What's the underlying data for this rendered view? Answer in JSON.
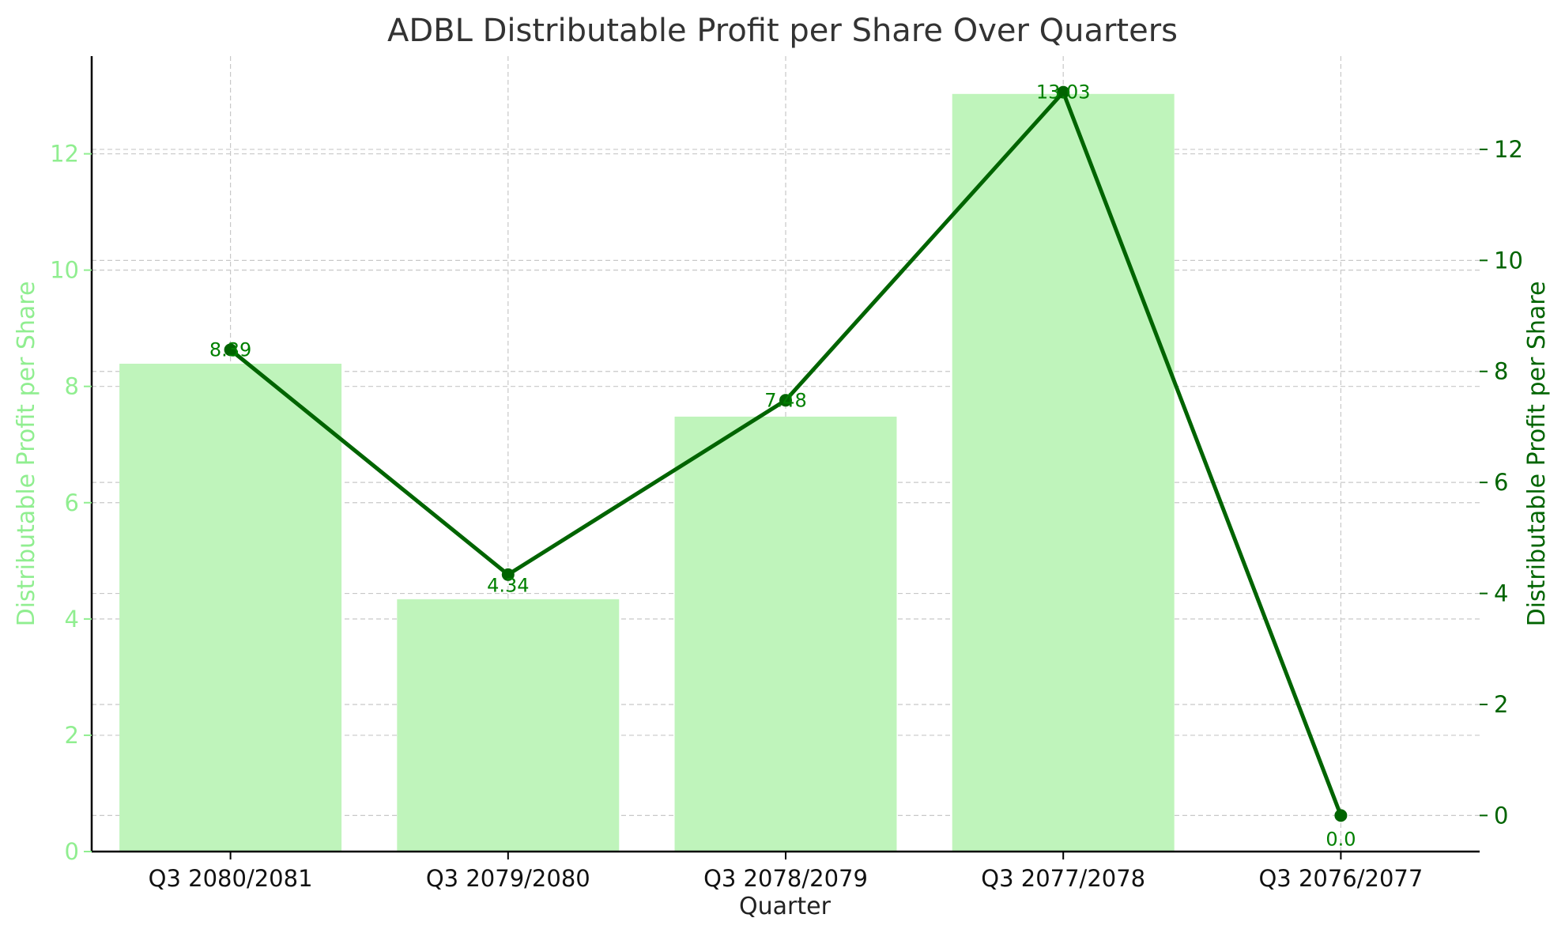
{
  "chart_data": {
    "type": "bar",
    "title": "ADBL Distributable Profit per Share Over Quarters",
    "xlabel": "Quarter",
    "ylabel_left": "Distributable Profit per Share",
    "ylabel_right": "Distributable Profit per Share",
    "categories": [
      "Q3 2080/2081",
      "Q3 2079/2080",
      "Q3 2078/2079",
      "Q3 2077/2078",
      "Q3 2076/2077"
    ],
    "series": [
      {
        "kind": "bar",
        "axis": "left",
        "values": [
          8.39,
          4.34,
          7.48,
          13.03,
          0.0
        ]
      },
      {
        "kind": "line",
        "axis": "right",
        "values": [
          8.39,
          4.34,
          7.48,
          13.03,
          0.0
        ]
      }
    ],
    "data_labels": [
      "8.39",
      "4.34",
      "7.48",
      "13.03",
      "0.0"
    ],
    "left_axis": {
      "ticks": [
        "0",
        "2",
        "4",
        "6",
        "8",
        "10",
        "12"
      ],
      "ylim": [
        0,
        13.68
      ]
    },
    "right_axis": {
      "ticks": [
        "0",
        "2",
        "4",
        "6",
        "8",
        "10",
        "12"
      ],
      "ylim": [
        -0.65,
        13.68
      ]
    },
    "grid": true,
    "colors": {
      "bar": "#bff4bb",
      "line": "#006400",
      "left_axis": "#90ee90",
      "right_axis": "#006400",
      "label": "#008000",
      "grid": "#c8c8c8",
      "title": "#333333"
    }
  }
}
